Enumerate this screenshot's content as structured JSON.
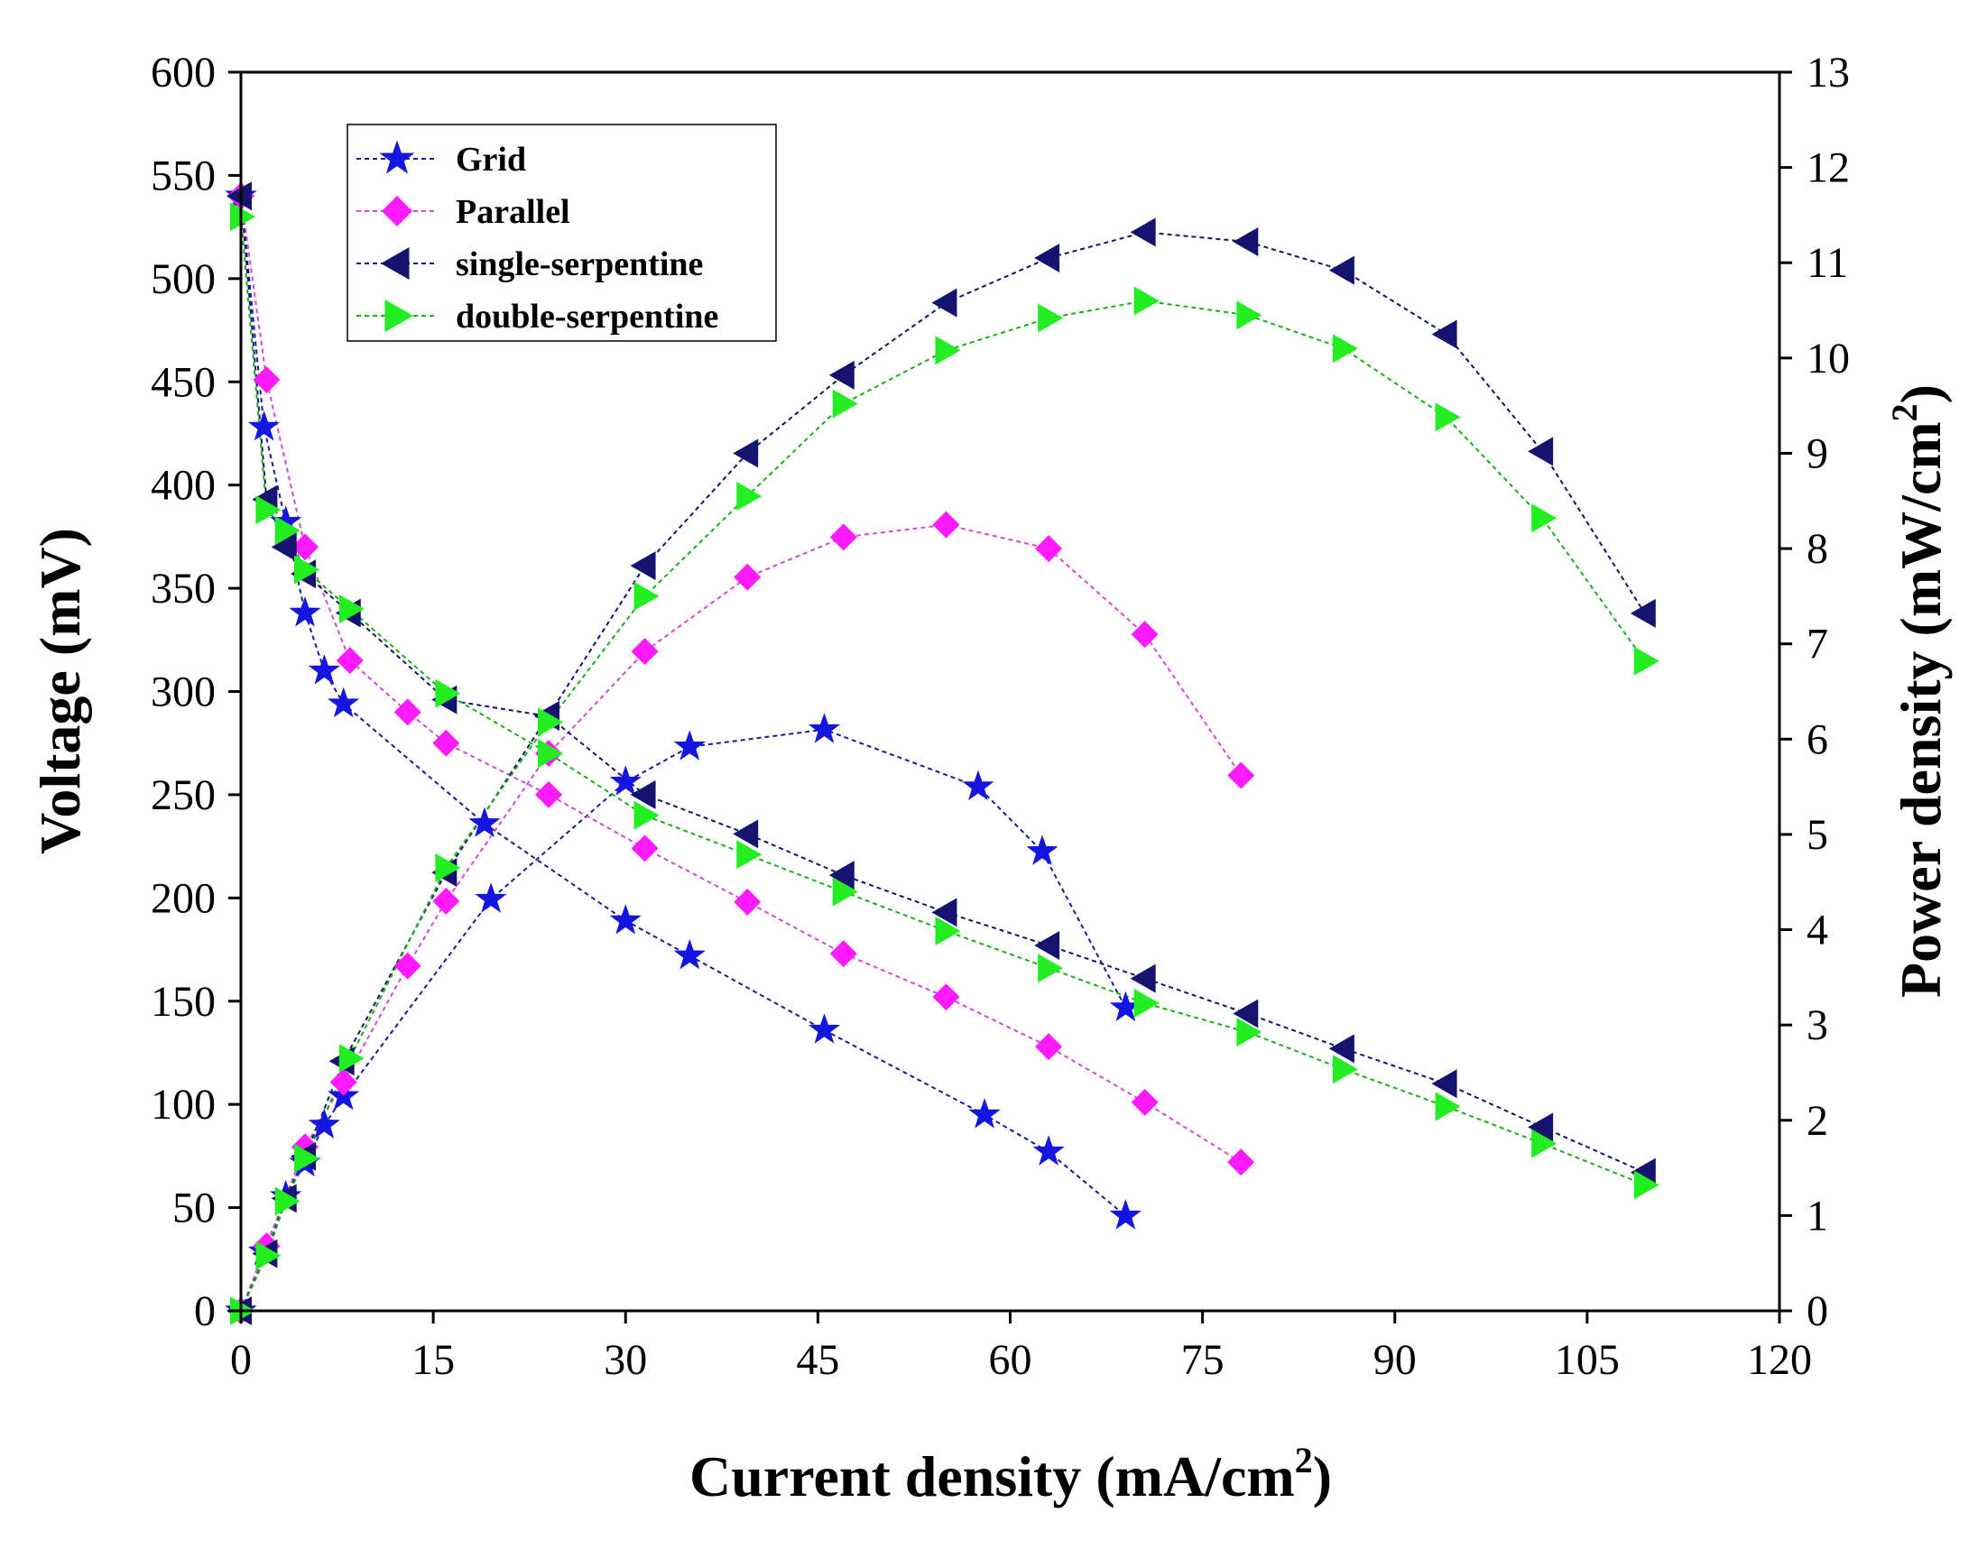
{
  "chart_data": {
    "type": "line",
    "title": "",
    "xlabel": "Current density (mA/cm",
    "xlabel_sup": "2",
    "xlabel_tail": ")",
    "ylabel": "Voltage (mV)",
    "y2label": "Power density (mW/cm",
    "y2label_sup": "2",
    "y2label_tail": ")",
    "xlim": [
      0,
      120
    ],
    "ylim": [
      0,
      600
    ],
    "y2lim": [
      0,
      13
    ],
    "xticks": [
      "0",
      "15",
      "30",
      "45",
      "60",
      "75",
      "90",
      "105",
      "120"
    ],
    "yticks": [
      "0",
      "50",
      "100",
      "150",
      "200",
      "250",
      "300",
      "350",
      "400",
      "450",
      "500",
      "550",
      "600"
    ],
    "y2ticks": [
      "0",
      "1",
      "2",
      "3",
      "4",
      "5",
      "6",
      "7",
      "8",
      "9",
      "10",
      "11",
      "12",
      "13"
    ],
    "legend_position": "top-left",
    "series": [
      {
        "name": "Grid",
        "marker": "star",
        "color": "#1515e0",
        "line_color": "#1a1a9a",
        "voltage": {
          "x": [
            0,
            1.8,
            3.5,
            5,
            6.5,
            8,
            19,
            30,
            35,
            45.5,
            58,
            63,
            69
          ],
          "y": [
            540,
            428,
            382,
            338,
            310,
            294,
            236,
            189,
            172,
            136,
            95,
            77,
            46
          ]
        },
        "power": {
          "x": [
            0,
            1.8,
            3.5,
            5,
            6.5,
            8,
            19.5,
            30,
            35,
            45.5,
            57.5,
            62.5,
            69
          ],
          "y": [
            0,
            0.62,
            1.2,
            1.55,
            1.95,
            2.25,
            4.32,
            5.55,
            5.92,
            6.1,
            5.5,
            4.82,
            3.18
          ]
        }
      },
      {
        "name": "Parallel",
        "marker": "diamond",
        "color": "#ff1aff",
        "line_color": "#d44ad4",
        "voltage": {
          "x": [
            0,
            2,
            5,
            8.5,
            13,
            16,
            24,
            31.5,
            39.5,
            47,
            55,
            63,
            70.5,
            78
          ],
          "y": [
            540,
            451,
            370,
            315,
            290,
            275,
            250,
            224,
            198,
            173,
            152,
            128,
            101,
            72
          ]
        },
        "power": {
          "x": [
            0,
            2,
            5,
            8,
            13,
            16,
            24,
            31.5,
            39.5,
            47,
            55,
            63,
            70.5,
            78
          ],
          "y": [
            0,
            0.68,
            1.72,
            2.4,
            3.62,
            4.3,
            5.85,
            6.92,
            7.7,
            8.12,
            8.25,
            8.0,
            7.1,
            5.62
          ]
        }
      },
      {
        "name": "single-serpentine",
        "marker": "triangle-left",
        "color": "#14146e",
        "line_color": "#14146e",
        "voltage": {
          "x": [
            0,
            2,
            3.5,
            5,
            8.5,
            16,
            24,
            31.5,
            39.5,
            47,
            55,
            63,
            70.5,
            78.5,
            86,
            94,
            101.5,
            109.5
          ],
          "y": [
            540,
            393,
            370,
            357,
            338,
            296,
            288,
            250,
            231,
            211,
            193,
            177,
            161,
            144,
            127,
            110,
            89,
            67
          ]
        },
        "power": {
          "x": [
            0,
            2,
            3.5,
            5,
            8,
            16,
            24,
            31.5,
            39.5,
            47,
            55,
            63,
            70.5,
            78.5,
            86,
            94,
            101.5,
            109.5
          ],
          "y": [
            0,
            0.6,
            1.18,
            1.62,
            2.62,
            4.6,
            6.25,
            7.82,
            9.0,
            9.82,
            10.58,
            11.05,
            11.32,
            11.22,
            10.92,
            10.25,
            9.02,
            7.32
          ]
        }
      },
      {
        "name": "double-serpentine",
        "marker": "triangle-right",
        "color": "#22ee22",
        "line_color": "#1bb01b",
        "voltage": {
          "x": [
            0,
            2,
            3.5,
            5,
            8.5,
            16,
            24,
            31.5,
            39.5,
            47,
            55,
            63,
            70.5,
            78.5,
            86,
            94,
            101.5,
            109.5
          ],
          "y": [
            530,
            388,
            378,
            359,
            340,
            299,
            270,
            240,
            221,
            203,
            184,
            166,
            149,
            135,
            117,
            99,
            81,
            61
          ]
        },
        "power": {
          "x": [
            0,
            2,
            3.5,
            5,
            8.5,
            16,
            24,
            31.5,
            39.5,
            47,
            55,
            63,
            70.5,
            78.5,
            86,
            94,
            101.5,
            109.5
          ],
          "y": [
            0,
            0.58,
            1.15,
            1.6,
            2.65,
            4.65,
            6.18,
            7.5,
            8.55,
            9.52,
            10.08,
            10.42,
            10.6,
            10.45,
            10.1,
            9.38,
            8.32,
            6.82
          ]
        }
      }
    ]
  }
}
